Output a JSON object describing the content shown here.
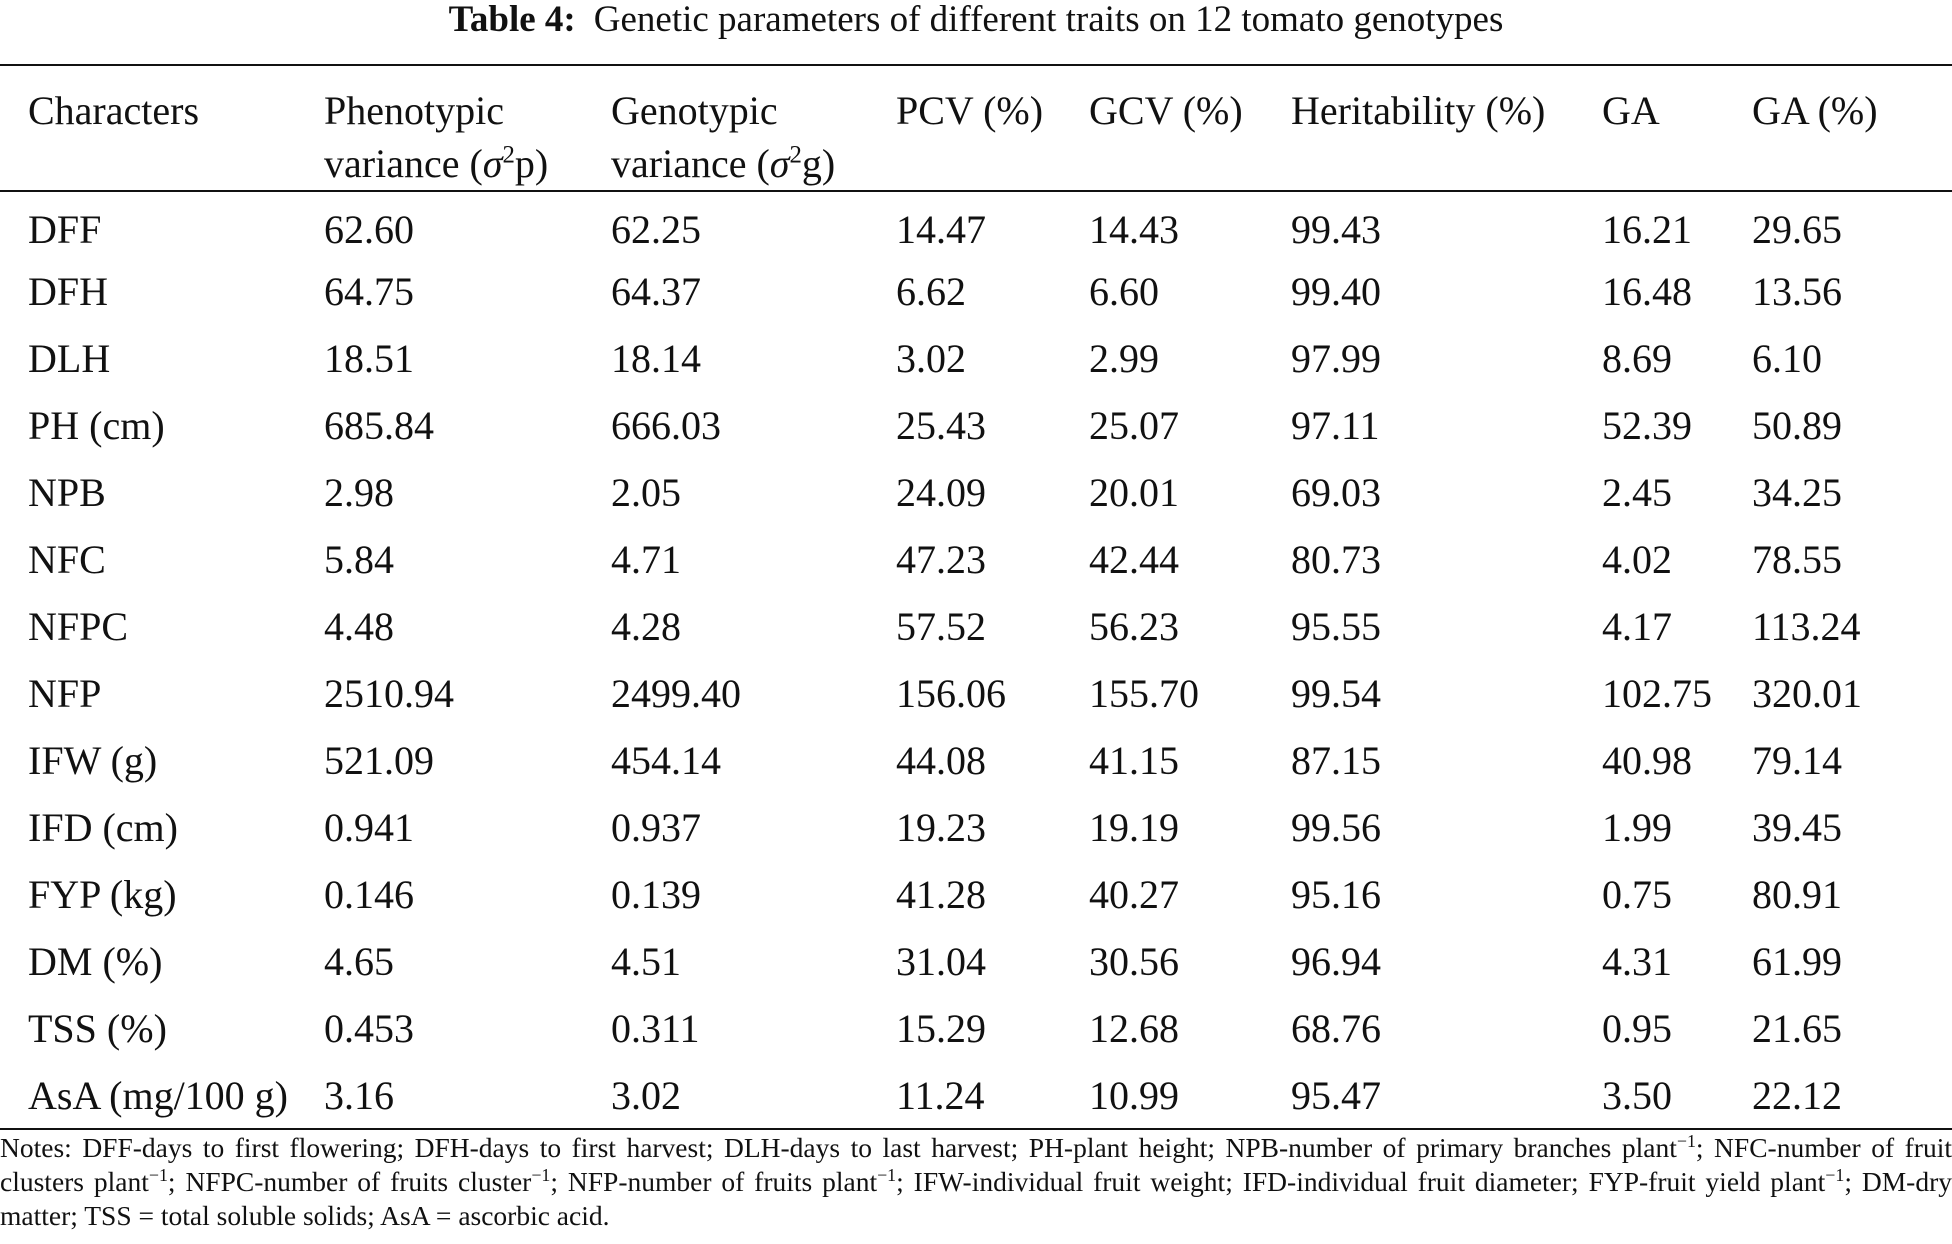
{
  "title": {
    "label": "Table 4:",
    "text": "Genetic parameters of different traits on 12 tomato genotypes"
  },
  "headers": {
    "characters": "Characters",
    "phenotypic": {
      "line1": "Phenotypic",
      "line2_prefix": "variance (",
      "symbol": "σ",
      "exp": "2",
      "suffix": "p)"
    },
    "genotypic": {
      "line1": "Genotypic",
      "line2_prefix": "variance (",
      "symbol": "σ",
      "exp": "2",
      "suffix": "g)"
    },
    "pcv": "PCV (%)",
    "gcv": "GCV (%)",
    "heritability": "Heritability (%)",
    "ga": "GA",
    "ga_pct": "GA (%)"
  },
  "rows": [
    [
      "DFF",
      "62.60",
      "62.25",
      "14.47",
      "14.43",
      "99.43",
      "16.21",
      "29.65"
    ],
    [
      "DFH",
      "64.75",
      "64.37",
      "6.62",
      "6.60",
      "99.40",
      "16.48",
      "13.56"
    ],
    [
      "DLH",
      "18.51",
      "18.14",
      "3.02",
      "2.99",
      "97.99",
      "8.69",
      "6.10"
    ],
    [
      "PH (cm)",
      "685.84",
      "666.03",
      "25.43",
      "25.07",
      "97.11",
      "52.39",
      "50.89"
    ],
    [
      "NPB",
      "2.98",
      "2.05",
      "24.09",
      "20.01",
      "69.03",
      "2.45",
      "34.25"
    ],
    [
      "NFC",
      "5.84",
      "4.71",
      "47.23",
      "42.44",
      "80.73",
      "4.02",
      "78.55"
    ],
    [
      "NFPC",
      "4.48",
      "4.28",
      "57.52",
      "56.23",
      "95.55",
      "4.17",
      "113.24"
    ],
    [
      "NFP",
      "2510.94",
      "2499.40",
      "156.06",
      "155.70",
      "99.54",
      "102.75",
      "320.01"
    ],
    [
      "IFW (g)",
      "521.09",
      "454.14",
      "44.08",
      "41.15",
      "87.15",
      "40.98",
      "79.14"
    ],
    [
      "IFD (cm)",
      "0.941",
      "0.937",
      "19.23",
      "19.19",
      "99.56",
      "1.99",
      "39.45"
    ],
    [
      "FYP (kg)",
      "0.146",
      "0.139",
      "41.28",
      "40.27",
      "95.16",
      "0.75",
      "80.91"
    ],
    [
      "DM (%)",
      "4.65",
      "4.51",
      "31.04",
      "30.56",
      "96.94",
      "4.31",
      "61.99"
    ],
    [
      "TSS (%)",
      "0.453",
      "0.311",
      "15.29",
      "12.68",
      "68.76",
      "0.95",
      "21.65"
    ],
    [
      "AsA (mg/100 g)",
      "3.16",
      "3.02",
      "11.24",
      "10.99",
      "95.47",
      "3.50",
      "22.12"
    ]
  ],
  "notes": {
    "p1": "Notes: DFF-days to first flowering; DFH-days to first harvest; DLH-days to last harvest; PH-plant height; NPB-number of primary branches plant",
    "s1": "−1",
    "p2": "; NFC-number of fruit clusters plant",
    "s2": "−1",
    "p3": "; NFPC-number of fruits cluster",
    "s3": "−1",
    "p4": "; NFP-number of fruits plant",
    "s4": "−1",
    "p5": "; IFW-individual fruit weight; IFD-individual fruit diameter; FYP-fruit yield plant",
    "s5": "−1",
    "p6": "; DM-dry matter; TSS = total soluble solids; AsA = ascorbic acid."
  }
}
